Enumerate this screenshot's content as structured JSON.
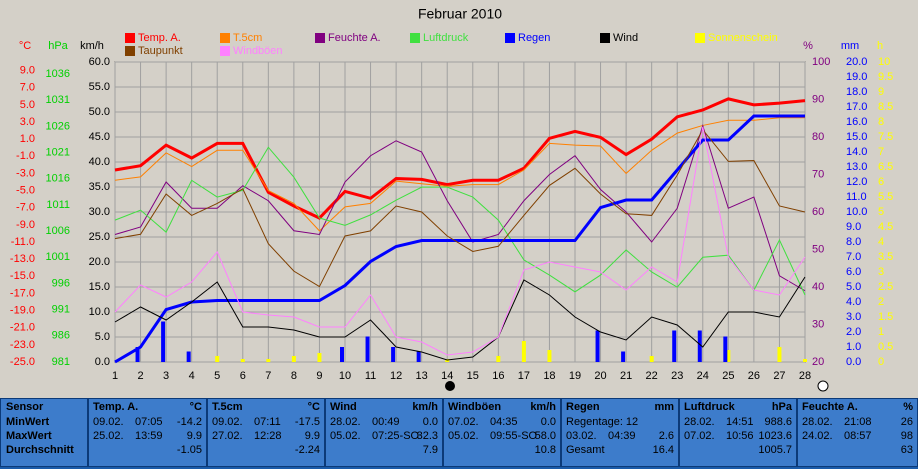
{
  "chart_data": {
    "type": "line",
    "title": "Februar 2010",
    "x": [
      1,
      2,
      3,
      4,
      5,
      6,
      7,
      8,
      9,
      10,
      11,
      12,
      13,
      14,
      15,
      16,
      17,
      18,
      19,
      20,
      21,
      22,
      23,
      24,
      25,
      26,
      27,
      28
    ],
    "xlim": [
      1,
      28
    ],
    "grid": true,
    "axes": {
      "c": {
        "label": "°C",
        "color": "#ff0000",
        "lim": [
          -25,
          10
        ],
        "ticks": [
          {
            "value": 9,
            "label": "9.0"
          },
          {
            "value": 7,
            "label": "7.0"
          },
          {
            "value": 5,
            "label": "5.0"
          },
          {
            "value": 3,
            "label": "3.0"
          },
          {
            "value": 1,
            "label": "1.0"
          },
          {
            "value": -1,
            "label": "-1.0"
          },
          {
            "value": -3,
            "label": "-3.0"
          },
          {
            "value": -5,
            "label": "-5.0"
          },
          {
            "value": -7,
            "label": "-7.0"
          },
          {
            "value": -9,
            "label": "-9.0"
          },
          {
            "value": -11,
            "label": "-11.0"
          },
          {
            "value": -13,
            "label": "-13.0"
          },
          {
            "value": -15,
            "label": "-15.0"
          },
          {
            "value": -17,
            "label": "-17.0"
          },
          {
            "value": -19,
            "label": "-19.0"
          },
          {
            "value": -21,
            "label": "-21.0"
          },
          {
            "value": -23,
            "label": "-23.0"
          },
          {
            "value": -25,
            "label": "-25.0"
          }
        ]
      },
      "hpa": {
        "label": "hPa",
        "color": "#00d000",
        "lim": [
          981,
          1038.3
        ],
        "ticks": [
          1036,
          1031,
          1026,
          1021,
          1016,
          1011,
          1006,
          1001,
          996,
          991,
          986,
          981
        ]
      },
      "kmh": {
        "label": "km/h",
        "color": "#000000",
        "lim": [
          0,
          60
        ],
        "ticks": [
          {
            "value": 60,
            "label": "60.0"
          },
          {
            "value": 55,
            "label": "55.0"
          },
          {
            "value": 50,
            "label": "50.0"
          },
          {
            "value": 45,
            "label": "45.0"
          },
          {
            "value": 40,
            "label": "40.0"
          },
          {
            "value": 35,
            "label": "35.0"
          },
          {
            "value": 30,
            "label": "30.0"
          },
          {
            "value": 25,
            "label": "25.0"
          },
          {
            "value": 20,
            "label": "20.0"
          },
          {
            "value": 15,
            "label": "15.0"
          },
          {
            "value": 10,
            "label": "10.0"
          },
          {
            "value": 5,
            "label": "5.0"
          },
          {
            "value": 0,
            "label": "0.0"
          }
        ]
      },
      "pct": {
        "label": "%",
        "color": "#800080",
        "lim": [
          20,
          100
        ],
        "ticks": [
          100,
          90,
          80,
          70,
          60,
          50,
          40,
          30,
          20
        ]
      },
      "mm": {
        "label": "mm",
        "color": "#0000ff",
        "lim": [
          0,
          20
        ],
        "ticks": [
          {
            "value": 20,
            "label": "20.0"
          },
          {
            "value": 19,
            "label": "19.0"
          },
          {
            "value": 18,
            "label": "18.0"
          },
          {
            "value": 17,
            "label": "17.0"
          },
          {
            "value": 16,
            "label": "16.0"
          },
          {
            "value": 15,
            "label": "15.0"
          },
          {
            "value": 14,
            "label": "14.0"
          },
          {
            "value": 13,
            "label": "13.0"
          },
          {
            "value": 12,
            "label": "12.0"
          },
          {
            "value": 11,
            "label": "11.0"
          },
          {
            "value": 10,
            "label": "10.0"
          },
          {
            "value": 9,
            "label": "9.0"
          },
          {
            "value": 8,
            "label": "8.0"
          },
          {
            "value": 7,
            "label": "7.0"
          },
          {
            "value": 6,
            "label": "6.0"
          },
          {
            "value": 5,
            "label": "5.0"
          },
          {
            "value": 4,
            "label": "4.0"
          },
          {
            "value": 3,
            "label": "3.0"
          },
          {
            "value": 2,
            "label": "2.0"
          },
          {
            "value": 1,
            "label": "1.0"
          },
          {
            "value": 0,
            "label": "0.0"
          }
        ]
      },
      "h": {
        "label": "h",
        "color": "#ffff00",
        "lim": [
          0,
          10
        ],
        "ticks": [
          10,
          9.5,
          9,
          8.5,
          8,
          7.5,
          7,
          6.5,
          6,
          5.5,
          5,
          4.5,
          4,
          3.5,
          3,
          2.5,
          2,
          1.5,
          1,
          0.5,
          0
        ]
      }
    },
    "series": [
      {
        "name": "Temp. A.",
        "color": "#ff0000",
        "axis": "c",
        "style": "line",
        "width": 3,
        "values": [
          -2.6,
          -2.1,
          0.3,
          -1.2,
          0.5,
          0.5,
          -5.2,
          -6.8,
          -8.2,
          -5.1,
          -5.9,
          -3.6,
          -3.7,
          -4.3,
          -3.8,
          -3.8,
          -2.4,
          1.1,
          1.9,
          1.2,
          -0.8,
          1.0,
          3.6,
          4.4,
          5.7,
          5.0,
          5.2,
          5.5
        ]
      },
      {
        "name": "T.5cm",
        "color": "#ff8000",
        "axis": "c",
        "style": "line",
        "width": 1,
        "values": [
          -3.8,
          -3.4,
          -0.6,
          -2.2,
          -0.3,
          -0.3,
          -5.0,
          -6.5,
          -9.7,
          -6.9,
          -6.5,
          -3.9,
          -4.2,
          -4.5,
          -4.3,
          -4.3,
          -2.6,
          0.5,
          0.3,
          0.2,
          -3.0,
          -0.3,
          1.7,
          2.6,
          3.2,
          3.2,
          3.5,
          3.5
        ]
      },
      {
        "name": "Feuchte A.",
        "color": "#800080",
        "axis": "pct",
        "style": "line",
        "width": 1,
        "values": [
          54,
          56,
          68,
          61,
          61,
          67,
          63,
          55,
          54,
          68,
          75,
          79,
          76,
          63,
          52,
          54,
          63,
          70,
          75,
          66,
          60,
          52,
          61,
          83,
          61,
          64,
          43,
          39
        ]
      },
      {
        "name": "Luftdruck",
        "color": "#40e040",
        "axis": "hpa",
        "style": "line",
        "width": 1,
        "values": [
          1008.1,
          1010.0,
          1005.8,
          1015.7,
          1012.5,
          1013.8,
          1022.0,
          1016.3,
          1008.5,
          1007.1,
          1009.1,
          1011.9,
          1014.4,
          1014.4,
          1012.5,
          1008.1,
          1000.5,
          997.6,
          994.4,
          997.6,
          1002.4,
          998.2,
          995.3,
          1001.0,
          1001.4,
          994.7,
          1004.3,
          993.8
        ]
      },
      {
        "name": "Regen",
        "color": "#0000ff",
        "axis": "mm",
        "style": "line",
        "width": 3,
        "values": [
          0,
          1.0,
          3.5,
          4.0,
          4.1,
          4.1,
          4.1,
          4.1,
          4.1,
          5.1,
          6.7,
          7.7,
          8.1,
          8.1,
          8.1,
          8.1,
          8.1,
          8.1,
          8.1,
          10.3,
          10.8,
          10.8,
          12.8,
          14.8,
          14.8,
          16.4,
          16.4,
          16.4
        ],
        "bar_values": [
          0,
          1.0,
          2.7,
          0.7,
          0,
          0,
          0,
          0,
          0,
          1.0,
          1.7,
          1.0,
          0.7,
          0,
          0,
          0,
          0,
          0,
          0,
          2.1,
          0.7,
          0,
          2.1,
          2.1,
          1.7,
          0,
          0,
          0
        ]
      },
      {
        "name": "Wind",
        "color": "#000000",
        "axis": "kmh",
        "style": "line",
        "width": 1,
        "values": [
          8.0,
          11.0,
          8.4,
          12.0,
          16.0,
          7.0,
          7.0,
          6.4,
          5.0,
          5.0,
          8.4,
          3.0,
          2.0,
          0.4,
          1.0,
          5.0,
          16.4,
          13.4,
          9.0,
          6.0,
          4.4,
          9.0,
          7.4,
          3.0,
          10.0,
          10.0,
          9.0,
          17.0
        ]
      },
      {
        "name": "Sonnenschein",
        "color": "#ffff00",
        "axis": "h",
        "style": "bar",
        "width": 1,
        "values": [
          0,
          0,
          0,
          0,
          0.2,
          0.1,
          0.1,
          0.2,
          0.3,
          0,
          0,
          0,
          0,
          0.1,
          0,
          0.2,
          0.7,
          0.4,
          0,
          0,
          0,
          0.2,
          0,
          0,
          0.4,
          0,
          0.5,
          0.1
        ]
      },
      {
        "name": "Taupunkt",
        "color": "#804000",
        "axis": "c",
        "style": "line",
        "width": 1,
        "values": [
          -10.6,
          -10.1,
          -5.4,
          -7.9,
          -6.5,
          -4.8,
          -11.2,
          -14.4,
          -16.2,
          -10.3,
          -9.7,
          -6.8,
          -7.5,
          -10.3,
          -12.1,
          -11.5,
          -7.9,
          -4.4,
          -2.4,
          -5.4,
          -7.7,
          -7.9,
          -3.2,
          2.1,
          -1.6,
          -1.5,
          -6.8,
          -7.5
        ]
      },
      {
        "name": "Windböen",
        "color": "#ff80ff",
        "axis": "kmh",
        "style": "line",
        "width": 1,
        "values": [
          10,
          15.4,
          13,
          16,
          22,
          10,
          9.4,
          9,
          7,
          7,
          13.4,
          5,
          4,
          1.4,
          2,
          5,
          18.4,
          20,
          19,
          18,
          14.4,
          19,
          16,
          47,
          21,
          14.4,
          13.4,
          21
        ]
      }
    ]
  },
  "summary": {
    "row_labels": [
      "Sensor",
      "MinWert",
      "MaxWert",
      "Durchschnitt"
    ],
    "columns": [
      {
        "name": "Temp. A.",
        "unit": "°C",
        "min": {
          "date": "09.02.",
          "time": "07:05",
          "value": "-14.2"
        },
        "max": {
          "date": "25.02.",
          "time": "13:59",
          "value": "9.9"
        },
        "avg": {
          "value": "-1.05"
        }
      },
      {
        "name": "T.5cm",
        "unit": "°C",
        "min": {
          "date": "09.02.",
          "time": "07:11",
          "value": "-17.5"
        },
        "max": {
          "date": "27.02.",
          "time": "12:28",
          "value": "9.9"
        },
        "avg": {
          "value": "-2.24"
        }
      },
      {
        "name": "Wind",
        "unit": "km/h",
        "min": {
          "date": "28.02.",
          "time": "00:49",
          "value": "0.0"
        },
        "max": {
          "date": "05.02.",
          "time": "07:25-SO",
          "value": "32.3"
        },
        "avg": {
          "value": "7.9"
        }
      },
      {
        "name": "Windböen",
        "unit": "km/h",
        "min": {
          "date": "07.02.",
          "time": "04:35",
          "value": "0.0"
        },
        "max": {
          "date": "05.02.",
          "time": "09:55-SO",
          "value": "58.0"
        },
        "avg": {
          "value": "10.8"
        }
      },
      {
        "name": "Regen",
        "unit": "mm",
        "min": {
          "text": "Regentage: 12"
        },
        "max": {
          "date": "03.02.",
          "time": "04:39",
          "value": "2.6"
        },
        "avg": {
          "label": "Gesamt",
          "value": "16.4"
        }
      },
      {
        "name": "Luftdruck",
        "unit": "hPa",
        "min": {
          "date": "28.02.",
          "time": "14:51",
          "value": "988.6"
        },
        "max": {
          "date": "07.02.",
          "time": "10:56",
          "value": "1023.6"
        },
        "avg": {
          "value": "1005.7"
        }
      },
      {
        "name": "Feuchte A.",
        "unit": "%",
        "min": {
          "date": "28.02.",
          "time": "21:08",
          "value": "26"
        },
        "max": {
          "date": "24.02.",
          "time": "08:57",
          "value": "98"
        },
        "avg": {
          "value": "63"
        }
      }
    ]
  }
}
